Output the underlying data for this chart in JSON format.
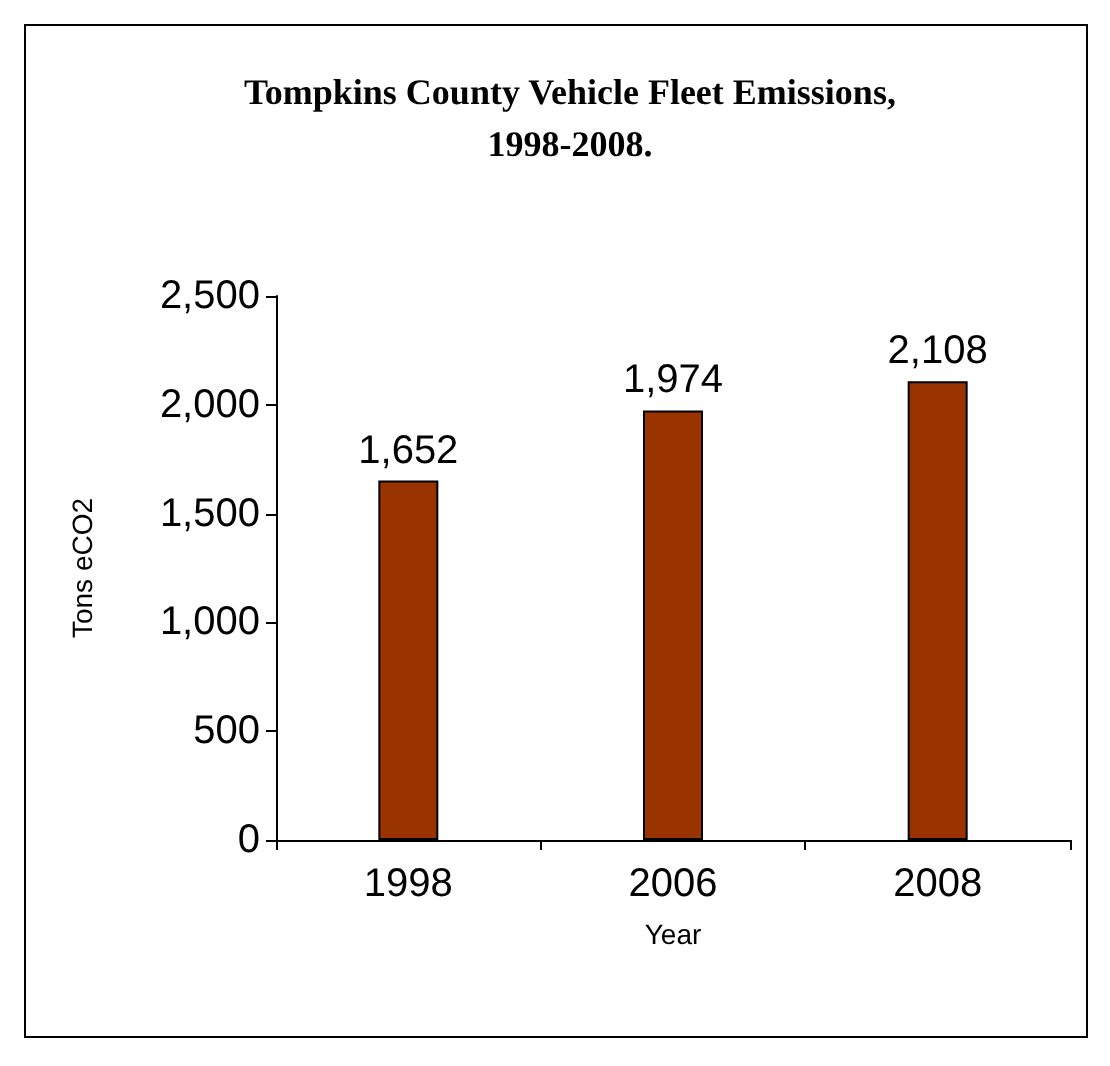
{
  "chart_data": {
    "type": "bar",
    "title": "Tompkins County Vehicle Fleet Emissions,\n1998-2008.",
    "xlabel": "Year",
    "ylabel": "Tons eCO2",
    "categories": [
      "1998",
      "2006",
      "2008"
    ],
    "values": [
      1652,
      1974,
      2108
    ],
    "color": "#993300",
    "value_labels": [
      "1,652",
      "1,974",
      "2,108"
    ],
    "ylim": [
      0,
      2500
    ],
    "yticks": [
      {
        "value": 0,
        "label": "0"
      },
      {
        "value": 500,
        "label": "500"
      },
      {
        "value": 1000,
        "label": "1,000"
      },
      {
        "value": 1500,
        "label": "1,500"
      },
      {
        "value": 2000,
        "label": "2,000"
      },
      {
        "value": 2500,
        "label": "2,500"
      }
    ],
    "grid": false
  }
}
